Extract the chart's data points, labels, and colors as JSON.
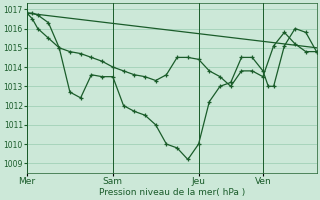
{
  "bg_color": "#cce8d8",
  "grid_color": "#99ccb0",
  "line_color": "#1a5c2a",
  "xlabel": "Pression niveau de la mer( hPa )",
  "ylim": [
    1008.5,
    1017.3
  ],
  "yticks": [
    1009,
    1010,
    1011,
    1012,
    1013,
    1014,
    1015,
    1016,
    1017
  ],
  "day_labels": [
    "Mer",
    "Sam",
    "Jeu",
    "Ven"
  ],
  "day_positions": [
    0,
    8,
    16,
    22
  ],
  "xlim": [
    0,
    27
  ],
  "series1_x": [
    0,
    0.5,
    1,
    2,
    3,
    4,
    5,
    6,
    7,
    8,
    9,
    10,
    11,
    12,
    13,
    14,
    15,
    16,
    17,
    18,
    19,
    20,
    21,
    22,
    22.5,
    23,
    24,
    25,
    26,
    27
  ],
  "series1_y": [
    1016.8,
    1016.8,
    1016.7,
    1016.3,
    1015.0,
    1012.7,
    1012.4,
    1013.6,
    1013.5,
    1013.5,
    1012.0,
    1011.7,
    1011.5,
    1011.0,
    1010.0,
    1009.8,
    1009.2,
    1010.0,
    1012.2,
    1013.0,
    1013.2,
    1014.5,
    1014.5,
    1013.8,
    1013.0,
    1013.0,
    1015.1,
    1016.0,
    1015.8,
    1014.8
  ],
  "series2_x": [
    0,
    27
  ],
  "series2_y": [
    1016.8,
    1015.0
  ],
  "series3_x": [
    0,
    0.5,
    1,
    2,
    3,
    4,
    5,
    6,
    7,
    8,
    9,
    10,
    11,
    12,
    13,
    14,
    15,
    16,
    17,
    18,
    19,
    20,
    21,
    22,
    23,
    24,
    25,
    26,
    27
  ],
  "series3_y": [
    1016.8,
    1016.5,
    1016.0,
    1015.5,
    1015.0,
    1014.8,
    1014.7,
    1014.5,
    1014.3,
    1014.0,
    1013.8,
    1013.6,
    1013.5,
    1013.3,
    1013.6,
    1014.5,
    1014.5,
    1014.4,
    1013.8,
    1013.5,
    1013.0,
    1013.8,
    1013.8,
    1013.5,
    1015.1,
    1015.8,
    1015.2,
    1014.8,
    1014.8
  ]
}
